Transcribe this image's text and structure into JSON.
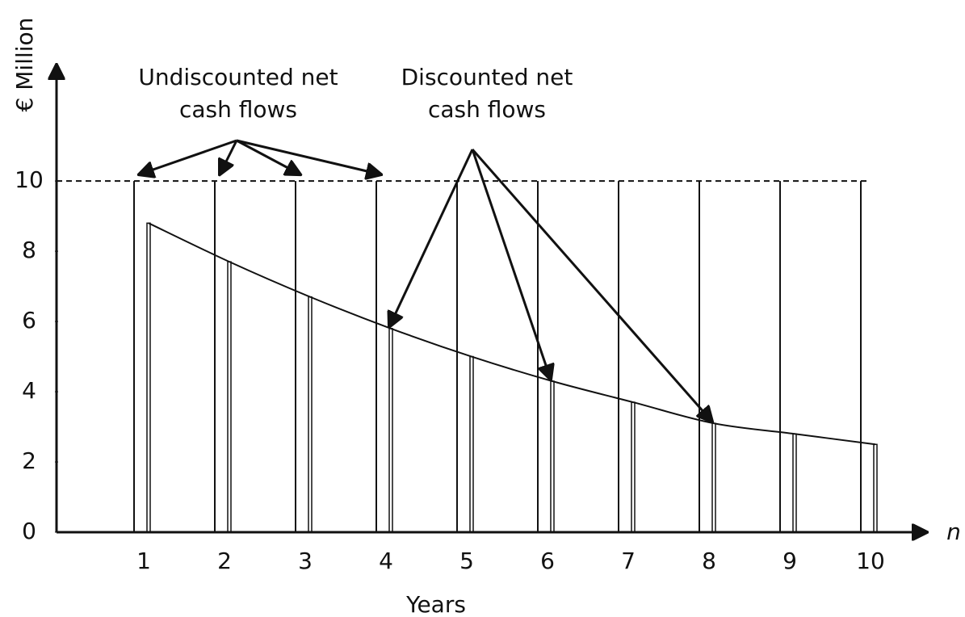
{
  "chart_data": {
    "type": "bar",
    "y_label": "€ Million",
    "x_label": "Years",
    "x_axis_symbol": "n",
    "categories": [
      "1",
      "2",
      "3",
      "4",
      "5",
      "6",
      "7",
      "8",
      "9",
      "10"
    ],
    "series": [
      {
        "color": "#111111",
        "values": [
          10,
          10,
          10,
          10,
          10,
          10,
          10,
          10,
          10,
          10
        ]
      },
      {
        "color": "#111111",
        "values": [
          8.8,
          7.7,
          6.7,
          5.8,
          5.0,
          4.3,
          3.7,
          3.1,
          2.8,
          2.5
        ]
      }
    ],
    "annotations": [
      {
        "lines": [
          "Undiscounted net",
          "cash flows"
        ],
        "points_to": [
          1,
          2,
          3,
          4
        ]
      },
      {
        "lines": [
          "Discounted net",
          "cash flows"
        ],
        "points_to": [
          4,
          6,
          8
        ]
      }
    ],
    "reference_line": 10,
    "ylim": [
      0,
      12.9
    ],
    "yticks": [
      0,
      2,
      4,
      6,
      8,
      10
    ]
  }
}
